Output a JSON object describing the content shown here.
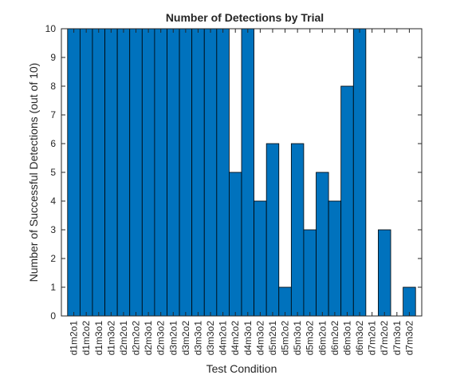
{
  "chart_data": {
    "type": "bar",
    "title": "Number of Detections by Trial",
    "xlabel": "Test Condition",
    "ylabel": "Number of Successful Detections (out of 10)",
    "ylim": [
      0,
      10
    ],
    "yticks": [
      0,
      1,
      2,
      3,
      4,
      5,
      6,
      7,
      8,
      9,
      10
    ],
    "grid": false,
    "categories": [
      "d1m2o1",
      "d1m2o2",
      "d1m3o1",
      "d1m3o2",
      "d2m2o1",
      "d2m2o2",
      "d2m3o1",
      "d2m3o2",
      "d3m2o1",
      "d3m2o2",
      "d3m3o1",
      "d3m3o2",
      "d4m2o1",
      "d4m2o2",
      "d4m3o1",
      "d4m3o2",
      "d5m2o1",
      "d5m2o2",
      "d5m3o1",
      "d5m3o2",
      "d6m2o1",
      "d6m2o2",
      "d6m3o1",
      "d6m3o2",
      "d7m2o1",
      "d7m2o2",
      "d7m3o1",
      "d7m3o2"
    ],
    "tick_labels": [
      "d1m2o1",
      "d1m2o2",
      "d1m3o1",
      "d1m3o2",
      "d2m2o1",
      "d2m2o2",
      "d2m3o1",
      "d2m3o2",
      "d3m2o1",
      "d3m2o2",
      "d3m3o1",
      "d3m3o2",
      "d4m2o1",
      "d4m2o2",
      "d4m3o1",
      "d4m3o2",
      "d5m2o1",
      "d5m2o2",
      "d5m3o1",
      "d5m3o2",
      "d6m2o1",
      "d6m2o2",
      "d6m3o1",
      "d6m3o2",
      "d7m2o1",
      "d7m2o2",
      "d7m3o1",
      "d7m3o2"
    ],
    "values": [
      10,
      10,
      10,
      10,
      10,
      10,
      10,
      10,
      10,
      10,
      10,
      10,
      10,
      5,
      10,
      4,
      6,
      1,
      6,
      3,
      5,
      4,
      8,
      10,
      0,
      3,
      0,
      1
    ],
    "bar_color": "#0072BD",
    "edge_color": "#000000"
  }
}
